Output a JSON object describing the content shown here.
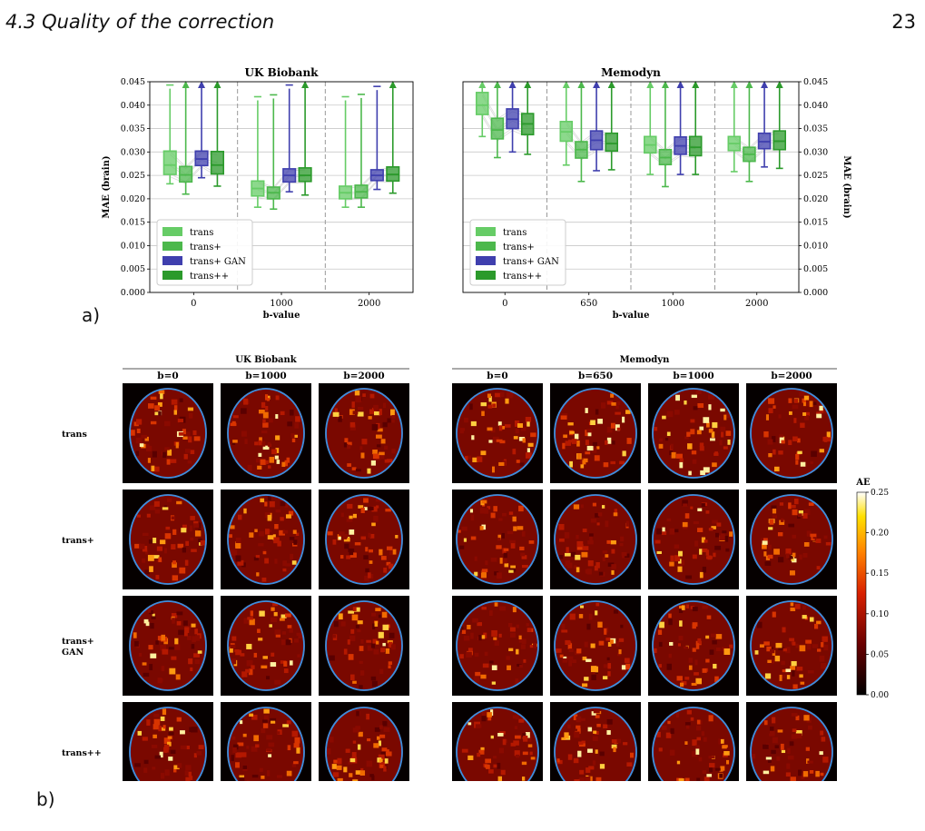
{
  "header": {
    "section": "4.3  Quality of the correction",
    "page_number": "23"
  },
  "panel_labels": {
    "a": "a)",
    "b": "b)"
  },
  "chart_data": [
    {
      "type": "box",
      "title": "UK Biobank",
      "xlabel": "b-value",
      "ylabel": "MAE (brain)",
      "ylim": [
        0,
        0.045
      ],
      "yticks": [
        "0.000",
        "0.005",
        "0.010",
        "0.015",
        "0.020",
        "0.025",
        "0.030",
        "0.035",
        "0.040",
        "0.045"
      ],
      "categories": [
        "0",
        "1000",
        "2000"
      ],
      "grid": true,
      "legend_position": "lower-left",
      "series": [
        {
          "name": "trans",
          "color": "#66cc66",
          "boxes": [
            {
              "min": 0.0232,
              "q1": 0.0252,
              "med": 0.0272,
              "q3": 0.0302,
              "max": 0.0443
            },
            {
              "min": 0.0182,
              "q1": 0.0206,
              "med": 0.0222,
              "q3": 0.0238,
              "max": 0.0418
            },
            {
              "min": 0.0182,
              "q1": 0.02,
              "med": 0.0213,
              "q3": 0.0227,
              "max": 0.0418
            }
          ]
        },
        {
          "name": "trans+",
          "color": "#4cb84c",
          "boxes": [
            {
              "min": 0.021,
              "q1": 0.0236,
              "med": 0.0251,
              "q3": 0.0269,
              "max": 0.045
            },
            {
              "min": 0.0178,
              "q1": 0.02,
              "med": 0.0213,
              "q3": 0.0225,
              "max": 0.0422
            },
            {
              "min": 0.0182,
              "q1": 0.0202,
              "med": 0.0215,
              "q3": 0.0229,
              "max": 0.0423
            }
          ]
        },
        {
          "name": "trans+ GAN",
          "color": "#3f3fae",
          "boxes": [
            {
              "min": 0.0245,
              "q1": 0.0271,
              "med": 0.0285,
              "q3": 0.0302,
              "max": 0.045
            },
            {
              "min": 0.0215,
              "q1": 0.0236,
              "med": 0.025,
              "q3": 0.0264,
              "max": 0.0443
            },
            {
              "min": 0.022,
              "q1": 0.0239,
              "med": 0.025,
              "q3": 0.0262,
              "max": 0.044
            }
          ]
        },
        {
          "name": "trans++",
          "color": "#2b9a2b",
          "boxes": [
            {
              "min": 0.0227,
              "q1": 0.0253,
              "med": 0.0272,
              "q3": 0.0301,
              "max": 0.045
            },
            {
              "min": 0.0208,
              "q1": 0.0237,
              "med": 0.025,
              "q3": 0.0266,
              "max": 0.045
            },
            {
              "min": 0.0212,
              "q1": 0.0238,
              "med": 0.0252,
              "q3": 0.0268,
              "max": 0.045
            }
          ]
        }
      ]
    },
    {
      "type": "box",
      "title": "Memodyn",
      "xlabel": "b-value",
      "ylabel": "MAE (brain)",
      "ylim": [
        0,
        0.045
      ],
      "yticks": [
        "0.000",
        "0.005",
        "0.010",
        "0.015",
        "0.020",
        "0.025",
        "0.030",
        "0.035",
        "0.040",
        "0.045"
      ],
      "categories": [
        "0",
        "650",
        "1000",
        "2000"
      ],
      "grid": true,
      "legend_position": "lower-left",
      "series": [
        {
          "name": "trans",
          "color": "#66cc66",
          "boxes": [
            {
              "min": 0.0333,
              "q1": 0.038,
              "med": 0.04,
              "q3": 0.0427,
              "max": 0.045
            },
            {
              "min": 0.0272,
              "q1": 0.0323,
              "med": 0.0343,
              "q3": 0.0365,
              "max": 0.045
            },
            {
              "min": 0.0252,
              "q1": 0.0298,
              "med": 0.0315,
              "q3": 0.0333,
              "max": 0.045
            },
            {
              "min": 0.0258,
              "q1": 0.0303,
              "med": 0.0318,
              "q3": 0.0333,
              "max": 0.045
            }
          ]
        },
        {
          "name": "trans+",
          "color": "#4cb84c",
          "boxes": [
            {
              "min": 0.0288,
              "q1": 0.0328,
              "med": 0.0347,
              "q3": 0.0372,
              "max": 0.045
            },
            {
              "min": 0.0237,
              "q1": 0.0287,
              "med": 0.0305,
              "q3": 0.0322,
              "max": 0.045
            },
            {
              "min": 0.0226,
              "q1": 0.0273,
              "med": 0.0288,
              "q3": 0.0305,
              "max": 0.045
            },
            {
              "min": 0.0237,
              "q1": 0.028,
              "med": 0.0295,
              "q3": 0.031,
              "max": 0.045
            }
          ]
        },
        {
          "name": "trans+ GAN",
          "color": "#3f3fae",
          "boxes": [
            {
              "min": 0.03,
              "q1": 0.035,
              "med": 0.037,
              "q3": 0.0392,
              "max": 0.045
            },
            {
              "min": 0.026,
              "q1": 0.0305,
              "med": 0.0325,
              "q3": 0.0345,
              "max": 0.045
            },
            {
              "min": 0.0252,
              "q1": 0.0295,
              "med": 0.0313,
              "q3": 0.0332,
              "max": 0.045
            },
            {
              "min": 0.0268,
              "q1": 0.0307,
              "med": 0.0322,
              "q3": 0.034,
              "max": 0.045
            }
          ]
        },
        {
          "name": "trans++",
          "color": "#2b9a2b",
          "boxes": [
            {
              "min": 0.0295,
              "q1": 0.0337,
              "med": 0.036,
              "q3": 0.0382,
              "max": 0.045
            },
            {
              "min": 0.0262,
              "q1": 0.0302,
              "med": 0.0318,
              "q3": 0.034,
              "max": 0.045
            },
            {
              "min": 0.0252,
              "q1": 0.0292,
              "med": 0.031,
              "q3": 0.0333,
              "max": 0.045
            },
            {
              "min": 0.0265,
              "q1": 0.0305,
              "med": 0.0323,
              "q3": 0.0345,
              "max": 0.045
            }
          ]
        }
      ]
    }
  ],
  "image_grid": {
    "groups": [
      {
        "title": "UK Biobank",
        "columns": [
          "b=0",
          "b=1000",
          "b=2000"
        ]
      },
      {
        "title": "Memodyn",
        "columns": [
          "b=0",
          "b=650",
          "b=1000",
          "b=2000"
        ]
      }
    ],
    "rows": [
      "trans",
      "trans+",
      "trans+\nGAN",
      "trans++"
    ],
    "colorbar": {
      "label": "AE",
      "ticks": [
        "0.25",
        "0.20",
        "0.15",
        "0.10",
        "0.05",
        "0.00"
      ],
      "range": [
        0,
        0.25
      ],
      "colormap": "hot"
    }
  }
}
